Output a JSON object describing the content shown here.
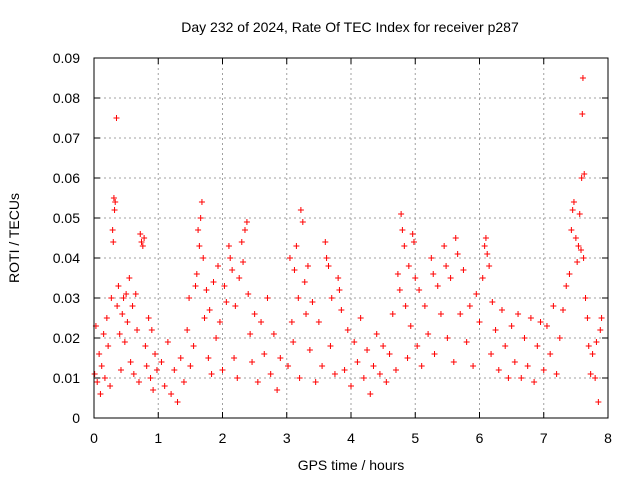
{
  "chart_data": {
    "type": "scatter",
    "title": "Day 232 of 2024, Rate Of TEC Index for receiver p287",
    "xlabel": "GPS time / hours",
    "ylabel": "ROTI / TECUs",
    "xlim": [
      0,
      8
    ],
    "ylim": [
      0,
      0.09
    ],
    "xticks": [
      0,
      1,
      2,
      3,
      4,
      5,
      6,
      7,
      8
    ],
    "xtick_labels": [
      "0",
      "1",
      "2",
      "3",
      "4",
      "5",
      "6",
      "7",
      "8"
    ],
    "yticks": [
      0,
      0.01,
      0.02,
      0.03,
      0.04,
      0.05,
      0.06,
      0.07,
      0.08,
      0.09
    ],
    "ytick_labels": [
      "0",
      "0.01",
      "0.02",
      "0.03",
      "0.04",
      "0.05",
      "0.06",
      "0.07",
      "0.08",
      "0.09"
    ],
    "grid": true,
    "marker": "+",
    "color": "#ff0000",
    "series": [
      {
        "name": "ROTI",
        "points": [
          [
            0.01,
            0.011
          ],
          [
            0.03,
            0.023
          ],
          [
            0.05,
            0.009
          ],
          [
            0.08,
            0.016
          ],
          [
            0.1,
            0.006
          ],
          [
            0.12,
            0.013
          ],
          [
            0.15,
            0.021
          ],
          [
            0.17,
            0.01
          ],
          [
            0.2,
            0.025
          ],
          [
            0.22,
            0.018
          ],
          [
            0.25,
            0.008
          ],
          [
            0.27,
            0.03
          ],
          [
            0.29,
            0.047
          ],
          [
            0.3,
            0.044
          ],
          [
            0.31,
            0.055
          ],
          [
            0.32,
            0.052
          ],
          [
            0.33,
            0.054
          ],
          [
            0.35,
            0.075
          ],
          [
            0.36,
            0.028
          ],
          [
            0.38,
            0.033
          ],
          [
            0.4,
            0.021
          ],
          [
            0.42,
            0.012
          ],
          [
            0.44,
            0.026
          ],
          [
            0.46,
            0.03
          ],
          [
            0.48,
            0.019
          ],
          [
            0.5,
            0.031
          ],
          [
            0.52,
            0.024
          ],
          [
            0.55,
            0.035
          ],
          [
            0.57,
            0.014
          ],
          [
            0.6,
            0.028
          ],
          [
            0.62,
            0.011
          ],
          [
            0.65,
            0.031
          ],
          [
            0.67,
            0.022
          ],
          [
            0.7,
            0.009
          ],
          [
            0.72,
            0.046
          ],
          [
            0.74,
            0.044
          ],
          [
            0.76,
            0.043
          ],
          [
            0.78,
            0.045
          ],
          [
            0.8,
            0.018
          ],
          [
            0.82,
            0.013
          ],
          [
            0.85,
            0.025
          ],
          [
            0.88,
            0.01
          ],
          [
            0.9,
            0.022
          ],
          [
            0.92,
            0.007
          ],
          [
            0.95,
            0.016
          ],
          [
            0.98,
            0.012
          ],
          [
            1.05,
            0.014
          ],
          [
            1.1,
            0.008
          ],
          [
            1.15,
            0.019
          ],
          [
            1.2,
            0.006
          ],
          [
            1.25,
            0.012
          ],
          [
            1.3,
            0.004
          ],
          [
            1.35,
            0.015
          ],
          [
            1.4,
            0.009
          ],
          [
            1.45,
            0.022
          ],
          [
            1.48,
            0.03
          ],
          [
            1.5,
            0.013
          ],
          [
            1.55,
            0.018
          ],
          [
            1.58,
            0.033
          ],
          [
            1.6,
            0.036
          ],
          [
            1.62,
            0.047
          ],
          [
            1.64,
            0.043
          ],
          [
            1.66,
            0.05
          ],
          [
            1.68,
            0.054
          ],
          [
            1.7,
            0.04
          ],
          [
            1.72,
            0.025
          ],
          [
            1.75,
            0.032
          ],
          [
            1.78,
            0.015
          ],
          [
            1.8,
            0.027
          ],
          [
            1.83,
            0.011
          ],
          [
            1.86,
            0.034
          ],
          [
            1.9,
            0.02
          ],
          [
            1.93,
            0.038
          ],
          [
            1.96,
            0.024
          ],
          [
            2.0,
            0.012
          ],
          [
            2.03,
            0.033
          ],
          [
            2.06,
            0.029
          ],
          [
            2.1,
            0.043
          ],
          [
            2.12,
            0.04
          ],
          [
            2.15,
            0.037
          ],
          [
            2.18,
            0.015
          ],
          [
            2.2,
            0.028
          ],
          [
            2.23,
            0.01
          ],
          [
            2.26,
            0.035
          ],
          [
            2.3,
            0.044
          ],
          [
            2.32,
            0.039
          ],
          [
            2.35,
            0.047
          ],
          [
            2.38,
            0.049
          ],
          [
            2.4,
            0.031
          ],
          [
            2.43,
            0.021
          ],
          [
            2.46,
            0.014
          ],
          [
            2.5,
            0.026
          ],
          [
            2.55,
            0.009
          ],
          [
            2.6,
            0.024
          ],
          [
            2.65,
            0.016
          ],
          [
            2.7,
            0.03
          ],
          [
            2.75,
            0.011
          ],
          [
            2.8,
            0.021
          ],
          [
            2.85,
            0.007
          ],
          [
            2.9,
            0.015
          ],
          [
            3.02,
            0.013
          ],
          [
            3.05,
            0.04
          ],
          [
            3.08,
            0.024
          ],
          [
            3.1,
            0.019
          ],
          [
            3.12,
            0.037
          ],
          [
            3.15,
            0.043
          ],
          [
            3.18,
            0.03
          ],
          [
            3.2,
            0.01
          ],
          [
            3.22,
            0.052
          ],
          [
            3.25,
            0.049
          ],
          [
            3.28,
            0.034
          ],
          [
            3.3,
            0.026
          ],
          [
            3.33,
            0.038
          ],
          [
            3.36,
            0.017
          ],
          [
            3.4,
            0.029
          ],
          [
            3.45,
            0.009
          ],
          [
            3.5,
            0.024
          ],
          [
            3.55,
            0.013
          ],
          [
            3.6,
            0.044
          ],
          [
            3.62,
            0.04
          ],
          [
            3.65,
            0.038
          ],
          [
            3.68,
            0.018
          ],
          [
            3.7,
            0.03
          ],
          [
            3.75,
            0.011
          ],
          [
            3.8,
            0.035
          ],
          [
            3.82,
            0.032
          ],
          [
            3.85,
            0.027
          ],
          [
            3.9,
            0.012
          ],
          [
            3.95,
            0.022
          ],
          [
            4.0,
            0.008
          ],
          [
            4.05,
            0.019
          ],
          [
            4.1,
            0.014
          ],
          [
            4.15,
            0.025
          ],
          [
            4.2,
            0.01
          ],
          [
            4.25,
            0.017
          ],
          [
            4.3,
            0.006
          ],
          [
            4.35,
            0.013
          ],
          [
            4.4,
            0.021
          ],
          [
            4.45,
            0.011
          ],
          [
            4.5,
            0.018
          ],
          [
            4.55,
            0.009
          ],
          [
            4.6,
            0.016
          ],
          [
            4.65,
            0.026
          ],
          [
            4.7,
            0.012
          ],
          [
            4.73,
            0.036
          ],
          [
            4.76,
            0.032
          ],
          [
            4.78,
            0.051
          ],
          [
            4.8,
            0.047
          ],
          [
            4.83,
            0.043
          ],
          [
            4.85,
            0.028
          ],
          [
            4.88,
            0.015
          ],
          [
            4.9,
            0.038
          ],
          [
            4.93,
            0.023
          ],
          [
            4.96,
            0.046
          ],
          [
            4.98,
            0.044
          ],
          [
            5.0,
            0.035
          ],
          [
            5.03,
            0.018
          ],
          [
            5.06,
            0.032
          ],
          [
            5.1,
            0.013
          ],
          [
            5.15,
            0.028
          ],
          [
            5.2,
            0.021
          ],
          [
            5.25,
            0.04
          ],
          [
            5.28,
            0.036
          ],
          [
            5.3,
            0.016
          ],
          [
            5.35,
            0.033
          ],
          [
            5.4,
            0.026
          ],
          [
            5.45,
            0.043
          ],
          [
            5.48,
            0.038
          ],
          [
            5.5,
            0.02
          ],
          [
            5.55,
            0.035
          ],
          [
            5.6,
            0.014
          ],
          [
            5.63,
            0.045
          ],
          [
            5.66,
            0.041
          ],
          [
            5.7,
            0.026
          ],
          [
            5.75,
            0.037
          ],
          [
            5.8,
            0.019
          ],
          [
            5.85,
            0.028
          ],
          [
            5.9,
            0.013
          ],
          [
            5.95,
            0.031
          ],
          [
            6.0,
            0.024
          ],
          [
            6.05,
            0.035
          ],
          [
            6.08,
            0.043
          ],
          [
            6.1,
            0.045
          ],
          [
            6.12,
            0.041
          ],
          [
            6.15,
            0.038
          ],
          [
            6.18,
            0.016
          ],
          [
            6.2,
            0.029
          ],
          [
            6.25,
            0.022
          ],
          [
            6.3,
            0.012
          ],
          [
            6.35,
            0.027
          ],
          [
            6.4,
            0.018
          ],
          [
            6.45,
            0.01
          ],
          [
            6.5,
            0.023
          ],
          [
            6.55,
            0.014
          ],
          [
            6.6,
            0.026
          ],
          [
            6.65,
            0.01
          ],
          [
            6.7,
            0.02
          ],
          [
            6.75,
            0.013
          ],
          [
            6.8,
            0.025
          ],
          [
            6.85,
            0.009
          ],
          [
            6.9,
            0.018
          ],
          [
            6.95,
            0.024
          ],
          [
            7.0,
            0.012
          ],
          [
            7.05,
            0.023
          ],
          [
            7.1,
            0.016
          ],
          [
            7.15,
            0.028
          ],
          [
            7.2,
            0.011
          ],
          [
            7.25,
            0.02
          ],
          [
            7.3,
            0.027
          ],
          [
            7.35,
            0.033
          ],
          [
            7.4,
            0.036
          ],
          [
            7.43,
            0.047
          ],
          [
            7.45,
            0.052
          ],
          [
            7.47,
            0.054
          ],
          [
            7.5,
            0.045
          ],
          [
            7.52,
            0.039
          ],
          [
            7.54,
            0.043
          ],
          [
            7.56,
            0.051
          ],
          [
            7.58,
            0.042
          ],
          [
            7.59,
            0.06
          ],
          [
            7.6,
            0.076
          ],
          [
            7.61,
            0.085
          ],
          [
            7.62,
            0.04
          ],
          [
            7.63,
            0.061
          ],
          [
            7.65,
            0.03
          ],
          [
            7.68,
            0.025
          ],
          [
            7.7,
            0.018
          ],
          [
            7.73,
            0.011
          ],
          [
            7.76,
            0.016
          ],
          [
            7.8,
            0.01
          ],
          [
            7.82,
            0.019
          ],
          [
            7.85,
            0.004
          ],
          [
            7.88,
            0.022
          ],
          [
            7.9,
            0.025
          ]
        ]
      }
    ]
  }
}
